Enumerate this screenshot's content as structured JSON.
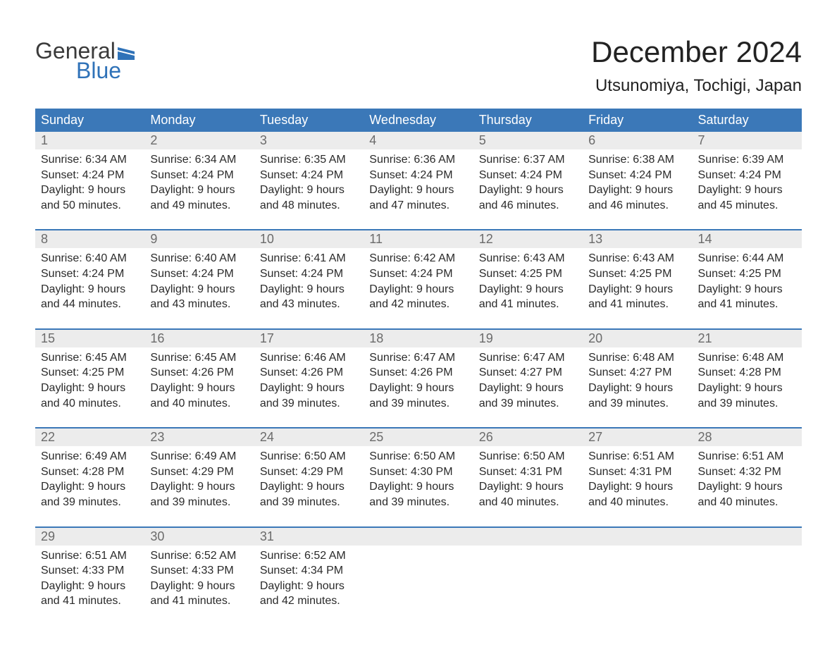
{
  "logo": {
    "word1": "General",
    "word2": "Blue",
    "flag_color": "#2f72b8"
  },
  "title": "December 2024",
  "location": "Utsunomiya, Tochigi, Japan",
  "colors": {
    "header_bg": "#3b78b8",
    "header_text": "#ffffff",
    "daynum_bg": "#ececec",
    "daynum_text": "#6b6b6b",
    "body_text": "#2a2a2a",
    "rule": "#3b78b8"
  },
  "day_names": [
    "Sunday",
    "Monday",
    "Tuesday",
    "Wednesday",
    "Thursday",
    "Friday",
    "Saturday"
  ],
  "weeks": [
    [
      {
        "n": "1",
        "sr": "Sunrise: 6:34 AM",
        "ss": "Sunset: 4:24 PM",
        "d1": "Daylight: 9 hours",
        "d2": "and 50 minutes."
      },
      {
        "n": "2",
        "sr": "Sunrise: 6:34 AM",
        "ss": "Sunset: 4:24 PM",
        "d1": "Daylight: 9 hours",
        "d2": "and 49 minutes."
      },
      {
        "n": "3",
        "sr": "Sunrise: 6:35 AM",
        "ss": "Sunset: 4:24 PM",
        "d1": "Daylight: 9 hours",
        "d2": "and 48 minutes."
      },
      {
        "n": "4",
        "sr": "Sunrise: 6:36 AM",
        "ss": "Sunset: 4:24 PM",
        "d1": "Daylight: 9 hours",
        "d2": "and 47 minutes."
      },
      {
        "n": "5",
        "sr": "Sunrise: 6:37 AM",
        "ss": "Sunset: 4:24 PM",
        "d1": "Daylight: 9 hours",
        "d2": "and 46 minutes."
      },
      {
        "n": "6",
        "sr": "Sunrise: 6:38 AM",
        "ss": "Sunset: 4:24 PM",
        "d1": "Daylight: 9 hours",
        "d2": "and 46 minutes."
      },
      {
        "n": "7",
        "sr": "Sunrise: 6:39 AM",
        "ss": "Sunset: 4:24 PM",
        "d1": "Daylight: 9 hours",
        "d2": "and 45 minutes."
      }
    ],
    [
      {
        "n": "8",
        "sr": "Sunrise: 6:40 AM",
        "ss": "Sunset: 4:24 PM",
        "d1": "Daylight: 9 hours",
        "d2": "and 44 minutes."
      },
      {
        "n": "9",
        "sr": "Sunrise: 6:40 AM",
        "ss": "Sunset: 4:24 PM",
        "d1": "Daylight: 9 hours",
        "d2": "and 43 minutes."
      },
      {
        "n": "10",
        "sr": "Sunrise: 6:41 AM",
        "ss": "Sunset: 4:24 PM",
        "d1": "Daylight: 9 hours",
        "d2": "and 43 minutes."
      },
      {
        "n": "11",
        "sr": "Sunrise: 6:42 AM",
        "ss": "Sunset: 4:24 PM",
        "d1": "Daylight: 9 hours",
        "d2": "and 42 minutes."
      },
      {
        "n": "12",
        "sr": "Sunrise: 6:43 AM",
        "ss": "Sunset: 4:25 PM",
        "d1": "Daylight: 9 hours",
        "d2": "and 41 minutes."
      },
      {
        "n": "13",
        "sr": "Sunrise: 6:43 AM",
        "ss": "Sunset: 4:25 PM",
        "d1": "Daylight: 9 hours",
        "d2": "and 41 minutes."
      },
      {
        "n": "14",
        "sr": "Sunrise: 6:44 AM",
        "ss": "Sunset: 4:25 PM",
        "d1": "Daylight: 9 hours",
        "d2": "and 41 minutes."
      }
    ],
    [
      {
        "n": "15",
        "sr": "Sunrise: 6:45 AM",
        "ss": "Sunset: 4:25 PM",
        "d1": "Daylight: 9 hours",
        "d2": "and 40 minutes."
      },
      {
        "n": "16",
        "sr": "Sunrise: 6:45 AM",
        "ss": "Sunset: 4:26 PM",
        "d1": "Daylight: 9 hours",
        "d2": "and 40 minutes."
      },
      {
        "n": "17",
        "sr": "Sunrise: 6:46 AM",
        "ss": "Sunset: 4:26 PM",
        "d1": "Daylight: 9 hours",
        "d2": "and 39 minutes."
      },
      {
        "n": "18",
        "sr": "Sunrise: 6:47 AM",
        "ss": "Sunset: 4:26 PM",
        "d1": "Daylight: 9 hours",
        "d2": "and 39 minutes."
      },
      {
        "n": "19",
        "sr": "Sunrise: 6:47 AM",
        "ss": "Sunset: 4:27 PM",
        "d1": "Daylight: 9 hours",
        "d2": "and 39 minutes."
      },
      {
        "n": "20",
        "sr": "Sunrise: 6:48 AM",
        "ss": "Sunset: 4:27 PM",
        "d1": "Daylight: 9 hours",
        "d2": "and 39 minutes."
      },
      {
        "n": "21",
        "sr": "Sunrise: 6:48 AM",
        "ss": "Sunset: 4:28 PM",
        "d1": "Daylight: 9 hours",
        "d2": "and 39 minutes."
      }
    ],
    [
      {
        "n": "22",
        "sr": "Sunrise: 6:49 AM",
        "ss": "Sunset: 4:28 PM",
        "d1": "Daylight: 9 hours",
        "d2": "and 39 minutes."
      },
      {
        "n": "23",
        "sr": "Sunrise: 6:49 AM",
        "ss": "Sunset: 4:29 PM",
        "d1": "Daylight: 9 hours",
        "d2": "and 39 minutes."
      },
      {
        "n": "24",
        "sr": "Sunrise: 6:50 AM",
        "ss": "Sunset: 4:29 PM",
        "d1": "Daylight: 9 hours",
        "d2": "and 39 minutes."
      },
      {
        "n": "25",
        "sr": "Sunrise: 6:50 AM",
        "ss": "Sunset: 4:30 PM",
        "d1": "Daylight: 9 hours",
        "d2": "and 39 minutes."
      },
      {
        "n": "26",
        "sr": "Sunrise: 6:50 AM",
        "ss": "Sunset: 4:31 PM",
        "d1": "Daylight: 9 hours",
        "d2": "and 40 minutes."
      },
      {
        "n": "27",
        "sr": "Sunrise: 6:51 AM",
        "ss": "Sunset: 4:31 PM",
        "d1": "Daylight: 9 hours",
        "d2": "and 40 minutes."
      },
      {
        "n": "28",
        "sr": "Sunrise: 6:51 AM",
        "ss": "Sunset: 4:32 PM",
        "d1": "Daylight: 9 hours",
        "d2": "and 40 minutes."
      }
    ],
    [
      {
        "n": "29",
        "sr": "Sunrise: 6:51 AM",
        "ss": "Sunset: 4:33 PM",
        "d1": "Daylight: 9 hours",
        "d2": "and 41 minutes."
      },
      {
        "n": "30",
        "sr": "Sunrise: 6:52 AM",
        "ss": "Sunset: 4:33 PM",
        "d1": "Daylight: 9 hours",
        "d2": "and 41 minutes."
      },
      {
        "n": "31",
        "sr": "Sunrise: 6:52 AM",
        "ss": "Sunset: 4:34 PM",
        "d1": "Daylight: 9 hours",
        "d2": "and 42 minutes."
      },
      null,
      null,
      null,
      null
    ]
  ]
}
